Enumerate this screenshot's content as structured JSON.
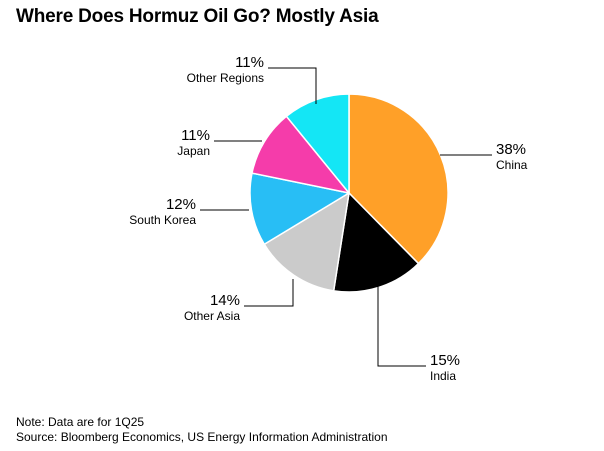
{
  "title": "Where Does Hormuz Oil Go? Mostly Asia",
  "note": "Note: Data are for 1Q25",
  "source": "Source: Bloomberg Economics, US Energy Information Administration",
  "chart_data": {
    "type": "pie",
    "title": "Where Does Hormuz Oil Go? Mostly Asia",
    "unit": "%",
    "start": "12 o'clock",
    "direction": "clockwise",
    "slices": [
      {
        "label": "China",
        "value": 38,
        "value_label": "38%",
        "color": "#FFA028"
      },
      {
        "label": "India",
        "value": 15,
        "value_label": "15%",
        "color": "#000000"
      },
      {
        "label": "Other Asia",
        "value": 14,
        "value_label": "14%",
        "color": "#CBCBCB"
      },
      {
        "label": "South Korea",
        "value": 12,
        "value_label": "12%",
        "color": "#28BEF5"
      },
      {
        "label": "Japan",
        "value": 11,
        "value_label": "11%",
        "color": "#F53CAA"
      },
      {
        "label": "Other Regions",
        "value": 11,
        "value_label": "11%",
        "color": "#14E6F5"
      }
    ]
  }
}
